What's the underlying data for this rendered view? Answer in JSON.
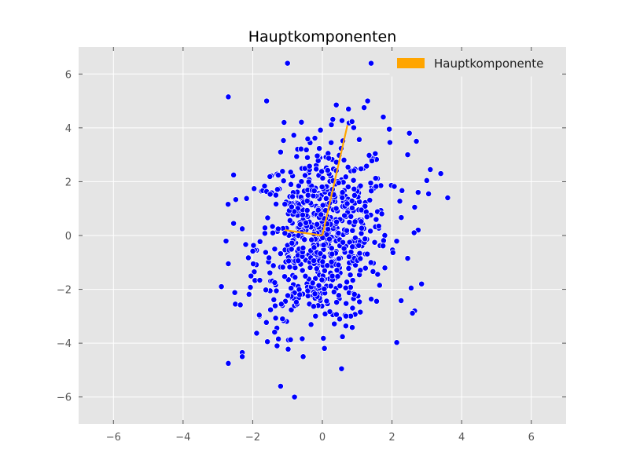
{
  "chart_data": {
    "type": "scatter",
    "title": "Hauptkomponenten",
    "xlabel": "",
    "ylabel": "",
    "xlim": [
      -7,
      7
    ],
    "ylim": [
      -7,
      7
    ],
    "xticks": [
      -6,
      -4,
      -2,
      0,
      2,
      4,
      6
    ],
    "yticks": [
      -6,
      -4,
      -2,
      0,
      2,
      4,
      6
    ],
    "xtick_labels": [
      "−6",
      "−4",
      "−2",
      "0",
      "2",
      "4",
      "6"
    ],
    "ytick_labels": [
      "−6",
      "−4",
      "−2",
      "0",
      "2",
      "4",
      "6"
    ],
    "grid": true,
    "legend_position": "top-right",
    "colors": {
      "background": "#e5e5e5",
      "grid": "#ffffff",
      "points": "#0000ff",
      "component": "#ffa500"
    },
    "scatter_series": {
      "color": "#0000ff",
      "points": [
        [
          -1.0,
          6.4
        ],
        [
          1.4,
          6.4
        ],
        [
          -2.7,
          5.15
        ],
        [
          -1.6,
          5.0
        ],
        [
          1.3,
          5.0
        ],
        [
          0.4,
          4.85
        ],
        [
          0.75,
          4.7
        ],
        [
          1.2,
          4.75
        ],
        [
          1.75,
          4.4
        ],
        [
          -1.1,
          4.2
        ],
        [
          2.5,
          3.8
        ],
        [
          2.7,
          3.5
        ],
        [
          2.45,
          3.0
        ],
        [
          -1.2,
          3.1
        ],
        [
          -1.75,
          1.65
        ],
        [
          -2.55,
          2.25
        ],
        [
          3.1,
          2.45
        ],
        [
          3.4,
          2.3
        ],
        [
          3.6,
          1.4
        ],
        [
          3.05,
          1.55
        ],
        [
          2.75,
          1.6
        ],
        [
          2.65,
          1.05
        ],
        [
          2.75,
          0.2
        ],
        [
          -2.3,
          0.25
        ],
        [
          -2.55,
          0.45
        ],
        [
          -2.7,
          -1.05
        ],
        [
          -2.9,
          -1.9
        ],
        [
          -2.5,
          -2.55
        ],
        [
          -2.7,
          -4.75
        ],
        [
          -2.3,
          -4.35
        ],
        [
          -2.3,
          -4.5
        ],
        [
          -1.2,
          -5.6
        ],
        [
          -0.8,
          -6.0
        ],
        [
          0.55,
          -4.95
        ],
        [
          2.65,
          -2.8
        ],
        [
          2.55,
          -1.95
        ],
        [
          2.85,
          -1.8
        ],
        [
          2.45,
          -0.85
        ],
        [
          -1.3,
          -4.1
        ],
        [
          -0.55,
          -4.5
        ]
      ],
      "bulk": {
        "count": 720,
        "mean": [
          0.0,
          0.0
        ],
        "sd": [
          0.95,
          1.75
        ],
        "corr": 0.12
      }
    },
    "component_series": {
      "name": "Hauptkomponente",
      "color": "#ffa500",
      "segments": [
        [
          [
            0.0,
            0.0
          ],
          [
            0.72,
            4.1
          ]
        ],
        [
          [
            0.0,
            0.0
          ],
          [
            -1.08,
            0.2
          ]
        ]
      ]
    },
    "legend": [
      {
        "label": "Hauptkomponente",
        "color": "#ffa500"
      }
    ]
  }
}
